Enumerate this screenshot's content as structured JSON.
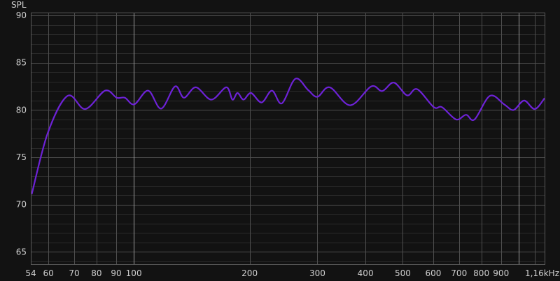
{
  "chart_data": {
    "type": "line",
    "ylabel": "SPL",
    "xscale": "log",
    "xlim": [
      54,
      1168
    ],
    "ylim": [
      63.7,
      90.3
    ],
    "grid": true,
    "y_ticks": [
      "65",
      "70",
      "75",
      "80",
      "85",
      "90"
    ],
    "x_ticks": [
      {
        "value": 54,
        "label": "54"
      },
      {
        "value": 60,
        "label": "60"
      },
      {
        "value": 70,
        "label": "70"
      },
      {
        "value": 80,
        "label": "80"
      },
      {
        "value": 90,
        "label": "90"
      },
      {
        "value": 100,
        "label": "100"
      },
      {
        "value": 200,
        "label": "200"
      },
      {
        "value": 300,
        "label": "300"
      },
      {
        "value": 400,
        "label": "400"
      },
      {
        "value": 500,
        "label": "500"
      },
      {
        "value": 600,
        "label": "600"
      },
      {
        "value": 700,
        "label": "700"
      },
      {
        "value": 800,
        "label": "800"
      },
      {
        "value": 900,
        "label": "900"
      },
      {
        "value": 1168,
        "label": "1,16kHz"
      }
    ],
    "colors": {
      "background": "#121212",
      "line": "#6d22d6",
      "grid_major": "#4e4e4e",
      "grid_minor": "#2a2a2a",
      "grid_decade": "#9a9a9a"
    },
    "series": [
      {
        "x": [
          54.3,
          59.8,
          67.3,
          74.8,
          84.2,
          90.3,
          94.8,
          100.3,
          109,
          117.8,
          128,
          135,
          145,
          159,
          174,
          180.4,
          186,
          192.8,
          201.6,
          214.8,
          228.6,
          242.5,
          263,
          284,
          300,
          323,
          365,
          414,
          442,
          474,
          513,
          545,
          602,
          632,
          688,
          730,
          768,
          842,
          917,
          970,
          1033,
          1101,
          1168
        ],
        "y": [
          71.1,
          77.6,
          81.5,
          80.1,
          82.05,
          81.3,
          81.3,
          80.6,
          82.05,
          80.15,
          82.5,
          81.3,
          82.4,
          81.1,
          82.4,
          81.1,
          81.8,
          81.1,
          81.8,
          80.8,
          82.05,
          80.7,
          83.3,
          82.1,
          81.4,
          82.4,
          80.5,
          82.5,
          82.0,
          82.9,
          81.55,
          82.2,
          80.3,
          80.3,
          79.0,
          79.5,
          79.0,
          81.5,
          80.6,
          80.0,
          81.0,
          80.1,
          81.25
        ]
      }
    ]
  }
}
